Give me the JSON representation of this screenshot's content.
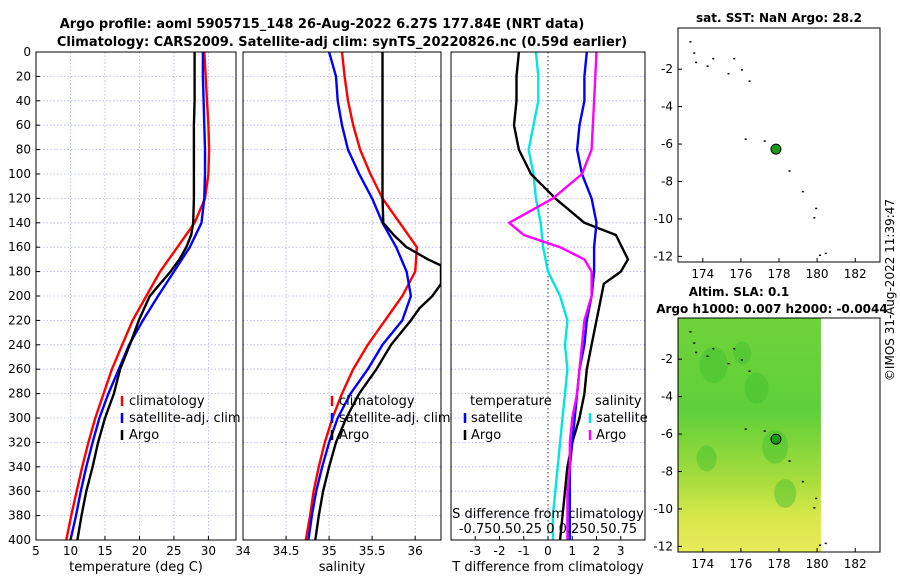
{
  "header": {
    "line1": "Argo profile: aoml 5905715_148 26-Aug-2022 6.27S 177.84E (NRT data)",
    "line2": "Climatology: CARS2009. Satellite-adj clim: synTS_20220826.nc (0.59d earlier)"
  },
  "footer": {
    "stamp": "©IMOS 31-Aug-2022 11:39:47"
  },
  "colors": {
    "clim": "#ff0000",
    "sat": "#0000ff",
    "argo": "#000000",
    "tdiff": "#00e5e5",
    "sdiff": "#ff00ff",
    "grid": "#b0b0ee",
    "map_dot": "#1a9a1a"
  },
  "chart_data": [
    {
      "id": "temperature",
      "type": "line",
      "xlabel": "temperature (deg C)",
      "xlim": [
        5,
        34
      ],
      "xticks": [
        5,
        10,
        15,
        20,
        25,
        30
      ],
      "ylim": [
        400,
        0
      ],
      "yticks": [
        0,
        20,
        40,
        60,
        80,
        100,
        120,
        140,
        160,
        180,
        200,
        220,
        240,
        260,
        280,
        300,
        320,
        340,
        360,
        380,
        400
      ],
      "legend": [
        "climatology",
        "satellite-adj. clim",
        "Argo"
      ],
      "series": [
        {
          "name": "climatology",
          "color": "clim",
          "points": [
            [
              29.4,
              0
            ],
            [
              29.6,
              20
            ],
            [
              29.8,
              40
            ],
            [
              30.0,
              60
            ],
            [
              30.1,
              80
            ],
            [
              30.0,
              100
            ],
            [
              29.5,
              120
            ],
            [
              28.0,
              140
            ],
            [
              25.5,
              160
            ],
            [
              23.0,
              180
            ],
            [
              21.0,
              200
            ],
            [
              19.0,
              220
            ],
            [
              17.5,
              240
            ],
            [
              16.0,
              260
            ],
            [
              14.8,
              280
            ],
            [
              13.6,
              300
            ],
            [
              12.6,
              320
            ],
            [
              11.7,
              340
            ],
            [
              10.9,
              360
            ],
            [
              10.1,
              380
            ],
            [
              9.4,
              400
            ]
          ]
        },
        {
          "name": "satellite-adj. clim",
          "color": "sat",
          "points": [
            [
              29.2,
              0
            ],
            [
              29.2,
              20
            ],
            [
              29.3,
              40
            ],
            [
              29.4,
              60
            ],
            [
              29.5,
              80
            ],
            [
              29.5,
              100
            ],
            [
              29.4,
              120
            ],
            [
              29.0,
              140
            ],
            [
              27.3,
              160
            ],
            [
              25.0,
              180
            ],
            [
              22.7,
              200
            ],
            [
              20.5,
              220
            ],
            [
              18.5,
              240
            ],
            [
              17.0,
              260
            ],
            [
              15.5,
              280
            ],
            [
              14.2,
              300
            ],
            [
              13.2,
              320
            ],
            [
              12.3,
              340
            ],
            [
              11.5,
              360
            ],
            [
              10.8,
              380
            ],
            [
              10.0,
              400
            ]
          ]
        },
        {
          "name": "Argo",
          "color": "argo",
          "points": [
            [
              28.0,
              0
            ],
            [
              28.0,
              20
            ],
            [
              28.0,
              40
            ],
            [
              27.9,
              60
            ],
            [
              27.9,
              80
            ],
            [
              27.9,
              100
            ],
            [
              27.9,
              120
            ],
            [
              27.8,
              140
            ],
            [
              27.5,
              150
            ],
            [
              26.8,
              160
            ],
            [
              25.8,
              170
            ],
            [
              24.5,
              180
            ],
            [
              23.0,
              190
            ],
            [
              21.5,
              200
            ],
            [
              19.9,
              220
            ],
            [
              18.6,
              240
            ],
            [
              17.2,
              260
            ],
            [
              16.3,
              280
            ],
            [
              15.0,
              300
            ],
            [
              14.0,
              320
            ],
            [
              13.2,
              340
            ],
            [
              12.3,
              360
            ],
            [
              11.6,
              380
            ],
            [
              11.0,
              400
            ]
          ]
        }
      ]
    },
    {
      "id": "salinity",
      "type": "line",
      "xlabel": "salinity",
      "xlim": [
        34.0,
        36.3
      ],
      "xticks": [
        34,
        34.5,
        35,
        35.5,
        36
      ],
      "ylim": [
        400,
        0
      ],
      "legend": [
        "climatology",
        "satellite-adj. clim",
        "Argo"
      ],
      "series": [
        {
          "name": "climatology",
          "color": "clim",
          "points": [
            [
              35.15,
              0
            ],
            [
              35.18,
              20
            ],
            [
              35.22,
              40
            ],
            [
              35.28,
              60
            ],
            [
              35.36,
              80
            ],
            [
              35.48,
              100
            ],
            [
              35.62,
              120
            ],
            [
              35.82,
              140
            ],
            [
              36.02,
              160
            ],
            [
              36.0,
              180
            ],
            [
              35.85,
              200
            ],
            [
              35.65,
              220
            ],
            [
              35.45,
              240
            ],
            [
              35.28,
              260
            ],
            [
              35.15,
              280
            ],
            [
              35.04,
              300
            ],
            [
              34.95,
              320
            ],
            [
              34.88,
              340
            ],
            [
              34.82,
              360
            ],
            [
              34.78,
              380
            ],
            [
              34.73,
              400
            ]
          ]
        },
        {
          "name": "satellite-adj. clim",
          "color": "sat",
          "points": [
            [
              35.0,
              0
            ],
            [
              35.08,
              20
            ],
            [
              35.1,
              40
            ],
            [
              35.15,
              60
            ],
            [
              35.22,
              80
            ],
            [
              35.35,
              100
            ],
            [
              35.5,
              120
            ],
            [
              35.62,
              140
            ],
            [
              35.78,
              160
            ],
            [
              35.9,
              180
            ],
            [
              35.95,
              200
            ],
            [
              35.85,
              220
            ],
            [
              35.62,
              240
            ],
            [
              35.45,
              260
            ],
            [
              35.25,
              280
            ],
            [
              35.1,
              300
            ],
            [
              35.0,
              320
            ],
            [
              34.92,
              340
            ],
            [
              34.85,
              360
            ],
            [
              34.8,
              380
            ],
            [
              34.76,
              400
            ]
          ]
        },
        {
          "name": "Argo",
          "color": "argo",
          "points": [
            [
              35.62,
              0
            ],
            [
              35.62,
              20
            ],
            [
              35.62,
              40
            ],
            [
              35.62,
              60
            ],
            [
              35.62,
              80
            ],
            [
              35.62,
              100
            ],
            [
              35.62,
              120
            ],
            [
              35.63,
              140
            ],
            [
              35.75,
              150
            ],
            [
              35.9,
              160
            ],
            [
              36.15,
              170
            ],
            [
              36.3,
              175
            ],
            [
              36.3,
              190
            ],
            [
              36.2,
              200
            ],
            [
              36.05,
              210
            ],
            [
              35.95,
              220
            ],
            [
              35.72,
              240
            ],
            [
              35.55,
              260
            ],
            [
              35.35,
              280
            ],
            [
              35.2,
              300
            ],
            [
              35.08,
              320
            ],
            [
              35.0,
              340
            ],
            [
              34.93,
              360
            ],
            [
              34.88,
              380
            ],
            [
              34.84,
              400
            ]
          ]
        }
      ]
    },
    {
      "id": "difference",
      "type": "line",
      "xlabel": "T difference from climatology",
      "xlabel_top": "S difference from climatology",
      "xlim": [
        -4,
        4
      ],
      "xticks": [
        -3,
        -2,
        -1,
        0,
        1,
        2,
        3
      ],
      "top_tick_text": "-0.750.50.25 0  0.250.50.75",
      "ylim": [
        400,
        0
      ],
      "legend_left": {
        "title": "temperature",
        "items": [
          "satellite",
          "Argo"
        ]
      },
      "legend_right": {
        "title": "salinity",
        "items": [
          "satellite",
          "Argo"
        ]
      },
      "series": [
        {
          "name": "T satellite",
          "color": "tdiff",
          "points": [
            [
              -0.5,
              0
            ],
            [
              -0.4,
              20
            ],
            [
              -0.4,
              40
            ],
            [
              -0.6,
              60
            ],
            [
              -0.8,
              80
            ],
            [
              -0.6,
              100
            ],
            [
              -0.5,
              120
            ],
            [
              -0.3,
              140
            ],
            [
              -0.2,
              160
            ],
            [
              0.0,
              180
            ],
            [
              0.5,
              200
            ],
            [
              0.8,
              220
            ],
            [
              0.7,
              240
            ],
            [
              0.8,
              260
            ],
            [
              0.7,
              280
            ],
            [
              0.6,
              300
            ],
            [
              0.5,
              320
            ],
            [
              0.4,
              340
            ],
            [
              0.3,
              360
            ],
            [
              0.2,
              380
            ],
            [
              0.2,
              400
            ]
          ]
        },
        {
          "name": "T Argo",
          "color": "argo",
          "points": [
            [
              -1.2,
              0
            ],
            [
              -1.3,
              20
            ],
            [
              -1.3,
              40
            ],
            [
              -1.4,
              60
            ],
            [
              -1.2,
              80
            ],
            [
              -0.7,
              100
            ],
            [
              0.3,
              120
            ],
            [
              1.5,
              140
            ],
            [
              2.8,
              150
            ],
            [
              3.3,
              170
            ],
            [
              3.0,
              180
            ],
            [
              2.3,
              190
            ],
            [
              2.2,
              200
            ],
            [
              2.0,
              220
            ],
            [
              1.8,
              240
            ],
            [
              1.6,
              260
            ],
            [
              1.5,
              280
            ],
            [
              1.3,
              300
            ],
            [
              1.0,
              320
            ],
            [
              0.8,
              340
            ],
            [
              0.7,
              360
            ],
            [
              0.6,
              380
            ],
            [
              0.5,
              400
            ]
          ]
        },
        {
          "name": "S satellite",
          "color": "sat",
          "points": [
            [
              1.6,
              0
            ],
            [
              1.5,
              20
            ],
            [
              1.5,
              40
            ],
            [
              1.3,
              60
            ],
            [
              1.2,
              80
            ],
            [
              1.4,
              100
            ],
            [
              1.8,
              120
            ],
            [
              2.0,
              140
            ],
            [
              1.9,
              160
            ],
            [
              1.9,
              180
            ],
            [
              1.8,
              200
            ],
            [
              1.6,
              220
            ],
            [
              1.5,
              240
            ],
            [
              1.3,
              260
            ],
            [
              1.2,
              280
            ],
            [
              1.1,
              300
            ],
            [
              1.0,
              320
            ],
            [
              0.9,
              340
            ],
            [
              0.9,
              360
            ],
            [
              0.9,
              380
            ],
            [
              0.9,
              400
            ]
          ]
        },
        {
          "name": "S Argo",
          "color": "sdiff",
          "points": [
            [
              2.0,
              0
            ],
            [
              1.9,
              40
            ],
            [
              1.8,
              80
            ],
            [
              1.4,
              100
            ],
            [
              0.2,
              120
            ],
            [
              -1.6,
              140
            ],
            [
              -1.0,
              150
            ],
            [
              0.5,
              160
            ],
            [
              1.5,
              170
            ],
            [
              1.8,
              180
            ],
            [
              1.8,
              200
            ],
            [
              1.5,
              220
            ],
            [
              1.4,
              240
            ],
            [
              1.3,
              260
            ],
            [
              1.2,
              280
            ],
            [
              1.0,
              300
            ],
            [
              0.9,
              320
            ],
            [
              0.9,
              340
            ],
            [
              0.8,
              360
            ],
            [
              0.8,
              380
            ],
            [
              0.8,
              400
            ]
          ]
        }
      ]
    },
    {
      "id": "sst_map",
      "type": "scatter",
      "title": "sat. SST: NaN Argo: 28.2",
      "xlim": [
        172.7,
        183.3
      ],
      "ylim": [
        -12.3,
        0.2
      ],
      "xticks": [
        174,
        176,
        178,
        180,
        182
      ],
      "yticks": [
        -2,
        -4,
        -6,
        -8,
        -10,
        -12
      ],
      "argo_position": [
        177.84,
        -6.27
      ],
      "islands": [
        [
          173.3,
          -0.5
        ],
        [
          173.5,
          -1.1
        ],
        [
          173.6,
          -1.6
        ],
        [
          174.2,
          -1.8
        ],
        [
          174.5,
          -1.4
        ],
        [
          175.3,
          -2.2
        ],
        [
          175.6,
          -1.4
        ],
        [
          176.0,
          -2.0
        ],
        [
          176.4,
          -2.6
        ],
        [
          176.2,
          -5.7
        ],
        [
          177.2,
          -5.8
        ],
        [
          178.0,
          -6.2
        ],
        [
          178.5,
          -7.4
        ],
        [
          179.2,
          -8.5
        ],
        [
          179.9,
          -9.4
        ],
        [
          179.8,
          -9.9
        ],
        [
          180.1,
          -11.9
        ],
        [
          180.4,
          -11.8
        ]
      ]
    },
    {
      "id": "sla_map",
      "type": "heatmap",
      "title1": "Altim. SLA: 0.1",
      "title2": "Argo h1000: 0.007 h2000: -0.0044",
      "xlim": [
        172.7,
        183.3
      ],
      "ylim": [
        -12.3,
        0.2
      ],
      "xticks": [
        174,
        176,
        178,
        180,
        182
      ],
      "yticks": [
        -2,
        -4,
        -6,
        -8,
        -10,
        -12
      ],
      "argo_position": [
        177.84,
        -6.27
      ],
      "data_lon_max": 180.2
    }
  ]
}
